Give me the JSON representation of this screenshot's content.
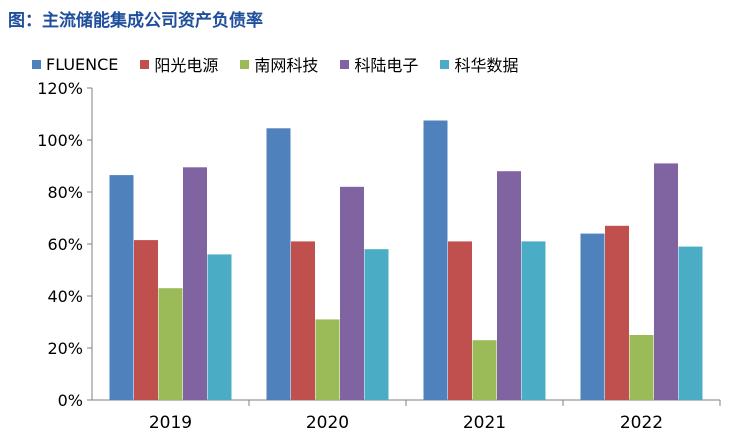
{
  "title": "图：主流储能集成公司资产负债率",
  "chart_data": {
    "type": "bar",
    "title": "图：主流储能集成公司资产负债率",
    "xlabel": "",
    "ylabel": "",
    "categories": [
      "2019",
      "2020",
      "2021",
      "2022"
    ],
    "ylim": [
      0,
      120
    ],
    "yticks": [
      0,
      20,
      40,
      60,
      80,
      100,
      120
    ],
    "ytick_labels": [
      "0%",
      "20%",
      "40%",
      "60%",
      "80%",
      "100%",
      "120%"
    ],
    "grid": false,
    "legend_position": "top",
    "series": [
      {
        "name": "FLUENCE",
        "color": "#4f81bd",
        "values": [
          86.5,
          104.5,
          107.5,
          64
        ]
      },
      {
        "name": "阳光电源",
        "color": "#c0504d",
        "values": [
          61.5,
          61,
          61,
          67
        ]
      },
      {
        "name": "南网科技",
        "color": "#9bbb59",
        "values": [
          43,
          31,
          23,
          25
        ]
      },
      {
        "name": "科陆电子",
        "color": "#8064a2",
        "values": [
          89.5,
          82,
          88,
          91
        ]
      },
      {
        "name": "科华数据",
        "color": "#4bacc6",
        "values": [
          56,
          58,
          61,
          59
        ]
      }
    ]
  }
}
